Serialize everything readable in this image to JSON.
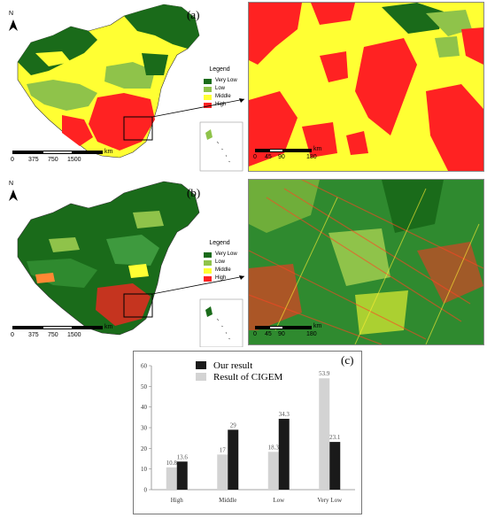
{
  "panels": {
    "a_label": "(a)",
    "b_label": "(b)",
    "c_label": "(c)",
    "north_label": "N"
  },
  "legend": {
    "title": "Legend",
    "items": [
      {
        "label": "Very Low",
        "color": "#1a6b1a"
      },
      {
        "label": "Low",
        "color": "#8fc34a"
      },
      {
        "label": "Middle",
        "color": "#ffff33"
      },
      {
        "label": "High",
        "color": "#ff2222"
      }
    ]
  },
  "main_scale": {
    "ticks": [
      "0",
      "375",
      "750",
      "1500"
    ],
    "unit": "km"
  },
  "inset_scale": {
    "ticks": [
      "0",
      "45",
      "90",
      "180"
    ],
    "unit": "km"
  },
  "colors": {
    "very_low": "#1a6b1a",
    "low": "#8fc34a",
    "middle": "#ffff33",
    "high": "#ff2222",
    "cigem_bar": "#d3d3d3",
    "our_bar": "#1a1a1a"
  },
  "chart_data": {
    "type": "bar",
    "categories": [
      "High",
      "Middle",
      "Low",
      "Very Low"
    ],
    "series": [
      {
        "name": "Result of CIGEM",
        "values": [
          10.8,
          17,
          18.3,
          53.9
        ],
        "value_labels": [
          "10.8",
          "17",
          "18.3",
          "53.9"
        ],
        "color": "#d3d3d3"
      },
      {
        "name": "Our result",
        "values": [
          13.6,
          29,
          34.3,
          23.1
        ],
        "value_labels": [
          "13.6",
          "29",
          "34.3",
          "23.1"
        ],
        "color": "#1a1a1a"
      }
    ],
    "legend_order": [
      "Our result",
      "Result of CIGEM"
    ],
    "legend_position": "top-center",
    "ylim": [
      0,
      60
    ],
    "yticks": [
      "0",
      "10",
      "20",
      "30",
      "40",
      "50",
      "60"
    ],
    "xlabel": "",
    "ylabel": "",
    "title": ""
  }
}
